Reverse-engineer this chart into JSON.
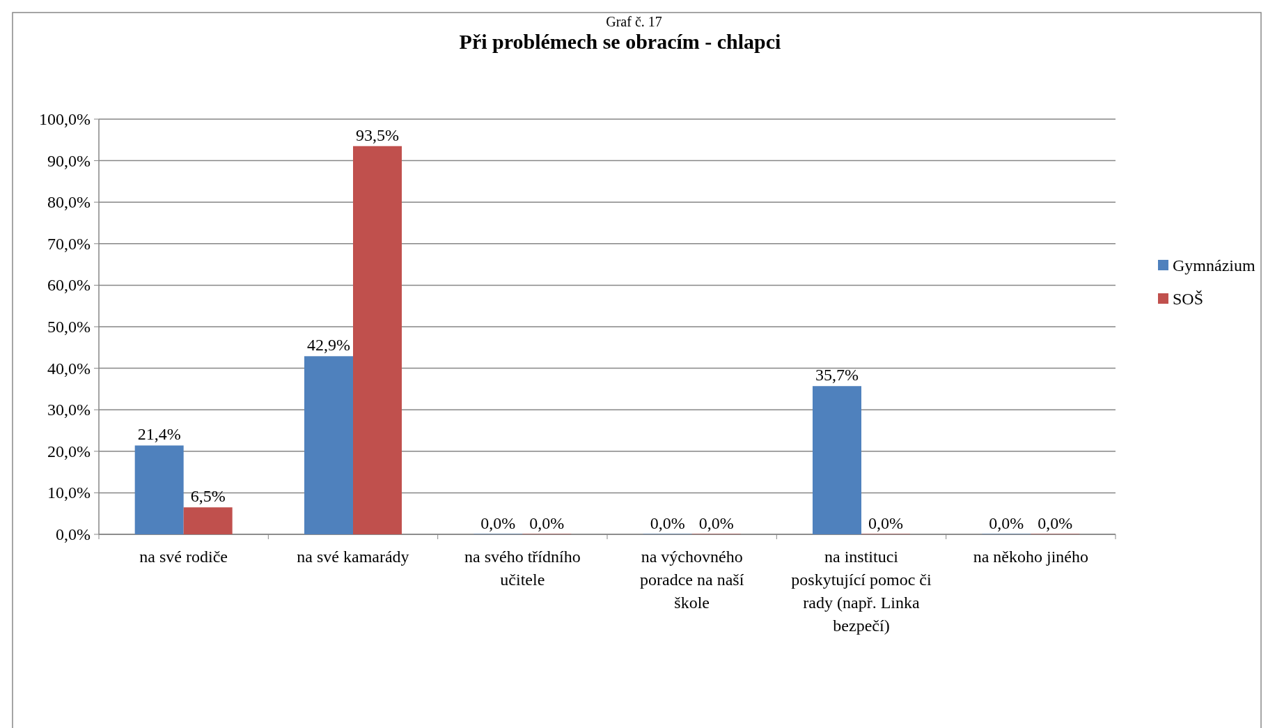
{
  "chart_data": {
    "type": "bar",
    "title": "Při problémech se obracím - chlapci",
    "annotations": [
      "Graf č. 17"
    ],
    "categories": [
      "na své rodiče",
      "na své kamarády",
      "na svého třídního učitele",
      "na výchovného poradce na naší škole",
      "na instituci poskytující pomoc či rady (např. Linka bezpečí)",
      "na někoho jiného"
    ],
    "series": [
      {
        "name": "Gymnázium",
        "color": "#4f81bd",
        "values": [
          21.4,
          42.9,
          0,
          0,
          35.7,
          0
        ],
        "value_labels": [
          "21,4%",
          "42,9%",
          "0,0%",
          "0,0%",
          "35,7%",
          "0,0%"
        ]
      },
      {
        "name": "SOŠ",
        "color": "#c0504d",
        "values": [
          6.5,
          93.5,
          0,
          0,
          0,
          0
        ],
        "value_labels": [
          "6,5%",
          "93,5%",
          "0,0%",
          "0,0%",
          "0,0%",
          "0,0%"
        ]
      }
    ],
    "ylim": [
      0,
      100
    ],
    "yticks": [
      {
        "value": 0,
        "label": "0,0%"
      },
      {
        "value": 10,
        "label": "10,0%"
      },
      {
        "value": 20,
        "label": "20,0%"
      },
      {
        "value": 30,
        "label": "30,0%"
      },
      {
        "value": 40,
        "label": "40,0%"
      },
      {
        "value": 50,
        "label": "50,0%"
      },
      {
        "value": 60,
        "label": "60,0%"
      },
      {
        "value": 70,
        "label": "70,0%"
      },
      {
        "value": 80,
        "label": "80,0%"
      },
      {
        "value": 90,
        "label": "90,0%"
      },
      {
        "value": 100,
        "label": "100,0%"
      }
    ],
    "grid": "y",
    "legend": "right"
  }
}
